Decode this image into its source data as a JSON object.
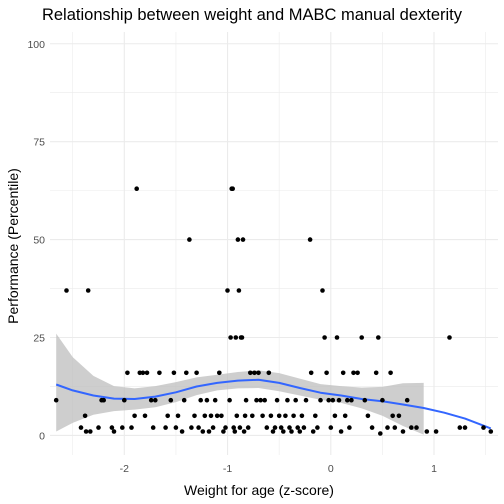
{
  "chart_data": {
    "type": "scatter",
    "title": "Relationship between weight and MABC manual dexterity",
    "xlabel": "Weight for age (z-score)",
    "ylabel": "Performance (Percentile)",
    "xlim": [
      -2.72,
      1.62
    ],
    "ylim": [
      -5,
      103
    ],
    "x_ticks": [
      -2,
      -1,
      0,
      1
    ],
    "x_tick_labels": [
      "-2",
      "-1",
      "0",
      "1"
    ],
    "y_ticks": [
      0,
      25,
      50,
      75,
      100
    ],
    "y_tick_labels": [
      "0",
      "25",
      "50",
      "75",
      "100"
    ],
    "grid": true,
    "legend": "none",
    "colors": {
      "points": "#000000",
      "smooth_line": "#3366ff",
      "confidence_band": "#bdbdbd",
      "grid": "#ebebeb"
    },
    "points": [
      [
        -2.66,
        9
      ],
      [
        -2.56,
        37
      ],
      [
        -2.35,
        37
      ],
      [
        -2.42,
        2
      ],
      [
        -2.38,
        5
      ],
      [
        -2.37,
        1
      ],
      [
        -2.33,
        1
      ],
      [
        -2.25,
        2
      ],
      [
        -2.22,
        9
      ],
      [
        -2.2,
        9
      ],
      [
        -2.12,
        2
      ],
      [
        -2.1,
        1
      ],
      [
        -2.02,
        2
      ],
      [
        -2.0,
        9
      ],
      [
        -1.97,
        16
      ],
      [
        -1.93,
        2
      ],
      [
        -1.9,
        5
      ],
      [
        -1.88,
        63
      ],
      [
        -1.85,
        16
      ],
      [
        -1.82,
        16
      ],
      [
        -1.8,
        5
      ],
      [
        -1.78,
        16
      ],
      [
        -1.74,
        9
      ],
      [
        -1.72,
        2
      ],
      [
        -1.7,
        9
      ],
      [
        -1.66,
        16
      ],
      [
        -1.6,
        2
      ],
      [
        -1.58,
        5
      ],
      [
        -1.55,
        9
      ],
      [
        -1.52,
        16
      ],
      [
        -1.5,
        2
      ],
      [
        -1.48,
        5
      ],
      [
        -1.44,
        1
      ],
      [
        -1.42,
        9
      ],
      [
        -1.4,
        16
      ],
      [
        -1.37,
        50
      ],
      [
        -1.35,
        2
      ],
      [
        -1.32,
        5
      ],
      [
        -1.3,
        16
      ],
      [
        -1.28,
        2
      ],
      [
        -1.26,
        9
      ],
      [
        -1.24,
        1
      ],
      [
        -1.22,
        5
      ],
      [
        -1.2,
        9
      ],
      [
        -1.18,
        1
      ],
      [
        -1.16,
        5
      ],
      [
        -1.14,
        2
      ],
      [
        -1.12,
        9
      ],
      [
        -1.1,
        5
      ],
      [
        -1.08,
        16
      ],
      [
        -1.06,
        5
      ],
      [
        -1.04,
        1
      ],
      [
        -1.02,
        2
      ],
      [
        -1.0,
        37
      ],
      [
        -0.98,
        9
      ],
      [
        -0.97,
        25
      ],
      [
        -0.96,
        63
      ],
      [
        -0.95,
        63
      ],
      [
        -0.94,
        2
      ],
      [
        -0.93,
        1
      ],
      [
        -0.92,
        25
      ],
      [
        -0.91,
        5
      ],
      [
        -0.9,
        50
      ],
      [
        -0.89,
        37
      ],
      [
        -0.88,
        2
      ],
      [
        -0.87,
        25
      ],
      [
        -0.86,
        25
      ],
      [
        -0.85,
        50
      ],
      [
        -0.84,
        1
      ],
      [
        -0.83,
        5
      ],
      [
        -0.82,
        9
      ],
      [
        -0.8,
        2
      ],
      [
        -0.78,
        16
      ],
      [
        -0.76,
        5
      ],
      [
        -0.74,
        16
      ],
      [
        -0.72,
        9
      ],
      [
        -0.7,
        16
      ],
      [
        -0.68,
        9
      ],
      [
        -0.66,
        5
      ],
      [
        -0.64,
        9
      ],
      [
        -0.62,
        2
      ],
      [
        -0.6,
        16
      ],
      [
        -0.58,
        5
      ],
      [
        -0.56,
        1
      ],
      [
        -0.54,
        2
      ],
      [
        -0.52,
        9
      ],
      [
        -0.5,
        5
      ],
      [
        -0.48,
        2
      ],
      [
        -0.46,
        1
      ],
      [
        -0.44,
        5
      ],
      [
        -0.42,
        9
      ],
      [
        -0.4,
        2
      ],
      [
        -0.38,
        1
      ],
      [
        -0.36,
        5
      ],
      [
        -0.34,
        9
      ],
      [
        -0.32,
        2
      ],
      [
        -0.3,
        1
      ],
      [
        -0.28,
        5
      ],
      [
        -0.26,
        2
      ],
      [
        -0.24,
        9
      ],
      [
        -0.2,
        50
      ],
      [
        -0.19,
        16
      ],
      [
        -0.17,
        1
      ],
      [
        -0.15,
        5
      ],
      [
        -0.13,
        2
      ],
      [
        -0.1,
        9
      ],
      [
        -0.08,
        37
      ],
      [
        -0.06,
        25
      ],
      [
        -0.04,
        16
      ],
      [
        -0.02,
        9
      ],
      [
        0.0,
        2
      ],
      [
        0.02,
        9
      ],
      [
        0.04,
        5
      ],
      [
        0.06,
        25
      ],
      [
        0.08,
        9
      ],
      [
        0.1,
        1
      ],
      [
        0.12,
        16
      ],
      [
        0.14,
        5
      ],
      [
        0.16,
        9
      ],
      [
        0.18,
        2
      ],
      [
        0.2,
        9
      ],
      [
        0.22,
        16
      ],
      [
        0.26,
        16
      ],
      [
        0.3,
        25
      ],
      [
        0.33,
        9
      ],
      [
        0.36,
        5
      ],
      [
        0.4,
        2
      ],
      [
        0.44,
        16
      ],
      [
        0.46,
        25
      ],
      [
        0.48,
        0.5
      ],
      [
        0.5,
        9
      ],
      [
        0.55,
        2
      ],
      [
        0.58,
        16
      ],
      [
        0.6,
        5
      ],
      [
        0.62,
        2
      ],
      [
        0.66,
        5
      ],
      [
        0.7,
        1
      ],
      [
        0.74,
        9
      ],
      [
        0.78,
        2
      ],
      [
        0.83,
        2
      ],
      [
        0.93,
        1
      ],
      [
        1.02,
        1
      ],
      [
        1.15,
        25
      ],
      [
        1.25,
        2
      ],
      [
        1.3,
        2
      ],
      [
        1.48,
        2
      ],
      [
        1.55,
        1
      ]
    ],
    "smooth": {
      "x": [
        -2.66,
        -2.5,
        -2.3,
        -2.1,
        -1.9,
        -1.7,
        -1.5,
        -1.3,
        -1.1,
        -0.9,
        -0.7,
        -0.5,
        -0.3,
        -0.1,
        0.1,
        0.3,
        0.5,
        0.7,
        0.9,
        1.1,
        1.3,
        1.55
      ],
      "y": [
        13.0,
        11.5,
        10.2,
        9.4,
        9.3,
        9.9,
        11.0,
        12.5,
        13.4,
        14.0,
        14.2,
        13.4,
        12.1,
        10.9,
        10.2,
        9.3,
        8.7,
        7.9,
        7.0,
        5.8,
        4.3,
        1.8
      ],
      "lower": [
        1.0,
        3.2,
        5.3,
        6.2,
        6.6,
        7.2,
        8.5,
        10.3,
        11.5,
        12.0,
        12.1,
        11.3,
        10.2,
        9.1,
        8.3,
        6.9,
        5.0,
        2.4,
        0.2,
        null,
        null,
        null
      ],
      "upper": [
        26.0,
        20.0,
        15.2,
        12.6,
        12.0,
        12.6,
        13.6,
        14.8,
        15.5,
        16.2,
        16.6,
        15.9,
        14.5,
        13.1,
        12.6,
        12.2,
        12.4,
        13.3,
        13.4,
        null,
        null,
        null
      ]
    }
  }
}
